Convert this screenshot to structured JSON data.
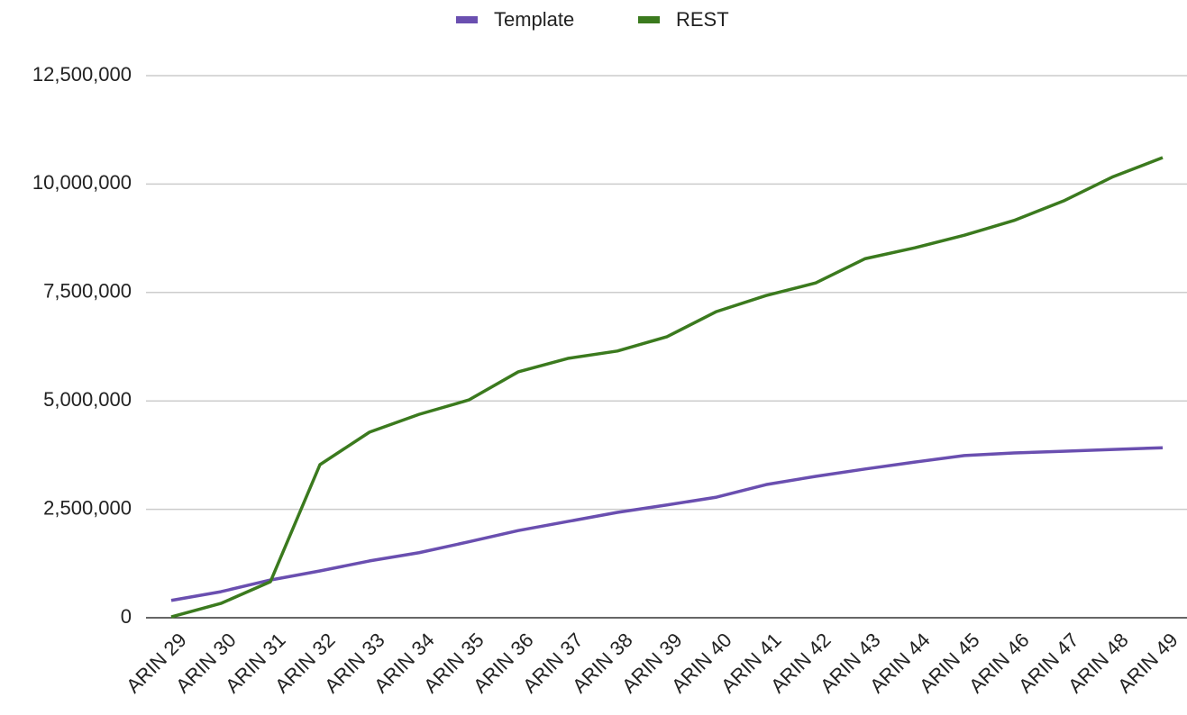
{
  "chart_data": {
    "type": "line",
    "categories": [
      "ARIN 29",
      "ARIN 30",
      "ARIN 31",
      "ARIN 32",
      "ARIN 33",
      "ARIN 34",
      "ARIN 35",
      "ARIN 36",
      "ARIN 37",
      "ARIN 38",
      "ARIN 39",
      "ARIN 40",
      "ARIN 41",
      "ARIN 42",
      "ARIN 43",
      "ARIN 44",
      "ARIN 45",
      "ARIN 46",
      "ARIN 47",
      "ARIN 48",
      "ARIN 49"
    ],
    "series": [
      {
        "name": "Template",
        "color": "#6a4fb0",
        "values": [
          400000,
          600000,
          870000,
          1080000,
          1310000,
          1500000,
          1750000,
          2010000,
          2220000,
          2430000,
          2600000,
          2780000,
          3070000,
          3260000,
          3430000,
          3590000,
          3740000,
          3800000,
          3840000,
          3880000,
          3920000
        ]
      },
      {
        "name": "REST",
        "color": "#3b7a1e",
        "values": [
          20000,
          330000,
          830000,
          3530000,
          4280000,
          4690000,
          5020000,
          5670000,
          5980000,
          6150000,
          6480000,
          7060000,
          7430000,
          7720000,
          8280000,
          8530000,
          8820000,
          9160000,
          9610000,
          10170000,
          10610000
        ]
      }
    ],
    "ylim": [
      0,
      12500000
    ],
    "yticks": [
      0,
      {
        "value": 2500000,
        "label": "2,500,000"
      },
      {
        "value": 5000000,
        "label": "5,000,000"
      },
      {
        "value": 7500000,
        "label": "7,500,000"
      },
      {
        "value": 10000000,
        "label": "10,000,000"
      },
      {
        "value": 12500000,
        "label": "12,500,000"
      }
    ],
    "grid": true,
    "legend": "top"
  }
}
